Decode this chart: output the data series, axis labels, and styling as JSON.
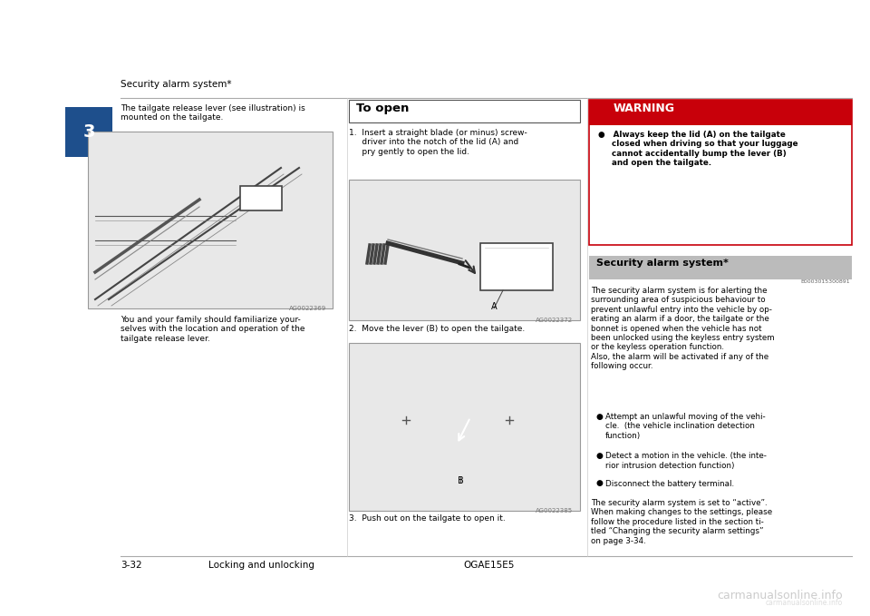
{
  "bg_color": "#ffffff",
  "page_width": 9.6,
  "page_height": 6.79,
  "header_text": "Security alarm system*",
  "left_col_text1": "The tailgate release lever (see illustration) is\nmounted on the tailgate.",
  "left_col_text2": "You and your family should familiarize your-\nselves with the location and operation of the\ntailgate release lever.",
  "middle_title": "To open",
  "middle_step1": "1.  Insert a straight blade (or minus) screw-\n     driver into the notch of the lid (A) and\n     pry gently to open the lid.",
  "middle_step2": "2.  Move the lever (B) to open the tailgate.",
  "middle_step3": "3.  Push out on the tailgate to open it.",
  "warning_title": "WARNING",
  "warning_text": "●   Always keep the lid (A) on the tailgate\n     closed when driving so that your luggage\n     cannot accidentally bump the lever (B)\n     and open the tailgate.",
  "sec_alarm_title": "Security alarm system*",
  "sec_alarm_id": "E0003015300891",
  "sec_alarm_text1": "The security alarm system is for alerting the\nsurrounding area of suspicious behaviour to\nprevent unlawful entry into the vehicle by op-\nerating an alarm if a door, the tailgate or the\nbonnet is opened when the vehicle has not\nbeen unlocked using the keyless entry system\nor the keyless operation function.\nAlso, the alarm will be activated if any of the\nfollowing occur.",
  "bullet1": "Attempt an unlawful moving of the vehi-\ncle.  (the vehicle inclination detection\nfunction)",
  "bullet2": "Detect a motion in the vehicle. (the inte-\nrior intrusion detection function)",
  "bullet3": "Disconnect the battery terminal.",
  "sec_alarm_text3": "The security alarm system is set to “active”.\nWhen making changes to the settings, please\nfollow the procedure listed in the section ti-\ntled “Changing the security alarm settings”\non page 3-34.",
  "footer_page": "3-32",
  "footer_label": "Locking and unlocking",
  "footer_code": "OGAE15E5",
  "watermark": "carmanualsonline.info",
  "chapter_num": "3",
  "image_bg": "#e8e8e8",
  "warn_red": "#c8000a",
  "warn_bg": "#e8e8e8",
  "sec_hdr_bg": "#bbbbbb",
  "img_caption1": "AG0022369",
  "img_caption2": "AG0022372",
  "img_caption3": "AG0022385"
}
